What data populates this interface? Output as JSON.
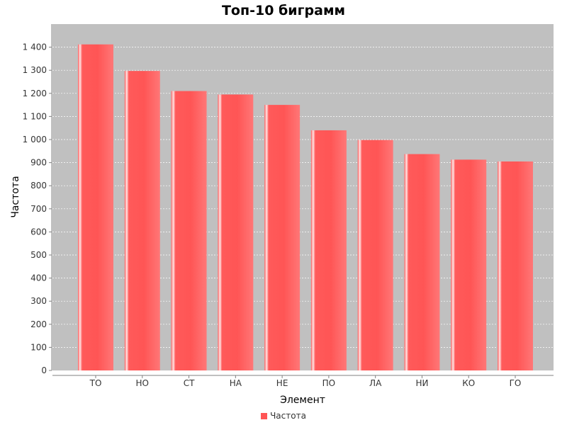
{
  "chart_data": {
    "type": "bar",
    "title": "Топ-10 биграмм",
    "xlabel": "Элемент",
    "ylabel": "Частота",
    "categories": [
      "ТО",
      "НО",
      "СТ",
      "НА",
      "НЕ",
      "ПО",
      "ЛА",
      "НИ",
      "КО",
      "ГО"
    ],
    "series": [
      {
        "name": "Частота",
        "values": [
          1412,
          1297,
          1210,
          1195,
          1150,
          1040,
          998,
          937,
          913,
          905
        ]
      }
    ],
    "ylim": [
      0,
      1500
    ],
    "yticks": [
      0,
      100,
      200,
      300,
      400,
      500,
      600,
      700,
      800,
      900,
      1000,
      1100,
      1200,
      1300,
      1400
    ],
    "ytick_labels": [
      "0",
      "100",
      "200",
      "300",
      "400",
      "500",
      "600",
      "700",
      "800",
      "900",
      "1 000",
      "1 100",
      "1 200",
      "1 300",
      "1 400"
    ],
    "grid": true,
    "legend_position": "bottom-center",
    "colors": {
      "bar": "#ff5555",
      "plot_background": "#c0c0c0",
      "gridline": "#ffffff"
    }
  }
}
